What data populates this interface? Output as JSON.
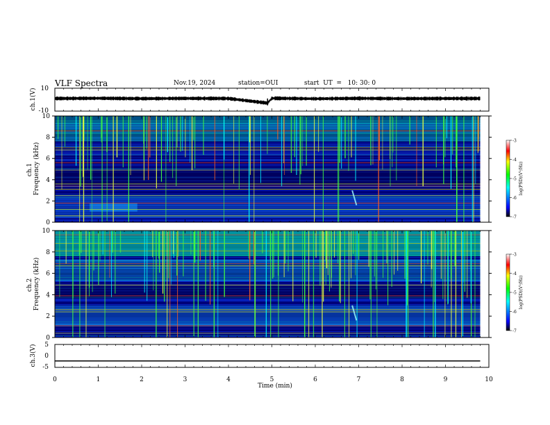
{
  "header": {
    "title": "VLF Spectra",
    "date": "Nov.19, 2024",
    "station": "station=OUI",
    "start_ut": "start  UT  =   10: 30: 0"
  },
  "chart_data": [
    {
      "type": "line",
      "panel": "ch1-waveform",
      "ylabel": "ch.1(V)",
      "ylim": [
        -10,
        10
      ],
      "yticks": [
        "10",
        "-10"
      ],
      "x": [
        0,
        1,
        2,
        3,
        4,
        4.9,
        5,
        6,
        7,
        8,
        9,
        9.8
      ],
      "series": [
        {
          "values": [
            1,
            1.2,
            0.9,
            1.1,
            1,
            -3,
            1.2,
            0.8,
            1.1,
            0.9,
            1,
            1
          ]
        }
      ]
    },
    {
      "type": "heatmap",
      "panel": "ch1-spectrogram",
      "ylabel": "ch.1\nFrequency (kHz)",
      "ylim": [
        0,
        10
      ],
      "yticks": [
        "0",
        "2",
        "4",
        "6",
        "8",
        "10"
      ],
      "colorbar": {
        "label": "log(PSD)(V²/Hz)",
        "range": [
          -7,
          -3
        ],
        "ticks": [
          "-3",
          "-4",
          "-5",
          "-6",
          "-7"
        ]
      }
    },
    {
      "type": "heatmap",
      "panel": "ch2-spectrogram",
      "ylabel": "ch.2\nFrequency (kHz)",
      "ylim": [
        0,
        10
      ],
      "yticks": [
        "0",
        "2",
        "4",
        "6",
        "8",
        "10"
      ],
      "colorbar": {
        "label": "log(PSD)(V²/Hz)",
        "range": [
          -7,
          -3
        ],
        "ticks": [
          "-3",
          "-4",
          "-5",
          "-6",
          "-7"
        ]
      }
    },
    {
      "type": "line",
      "panel": "ch3-waveform",
      "ylabel": "ch.3(V)",
      "ylim": [
        -5,
        5
      ],
      "yticks": [
        "5",
        "0",
        "-5"
      ],
      "x": [
        0,
        9.8
      ],
      "series": [
        {
          "values": [
            -2.2,
            -2.2
          ]
        }
      ]
    }
  ],
  "x_axis": {
    "label": "Time (min)",
    "ticks": [
      "0",
      "1",
      "2",
      "3",
      "4",
      "5",
      "6",
      "7",
      "8",
      "9",
      "10"
    ],
    "range": [
      0,
      10
    ]
  },
  "colors": {
    "background": "#000055",
    "cmap": [
      "#000000",
      "#0000ff",
      "#00ffff",
      "#00ff00",
      "#ffff00",
      "#ff0000",
      "#ffffff"
    ]
  }
}
